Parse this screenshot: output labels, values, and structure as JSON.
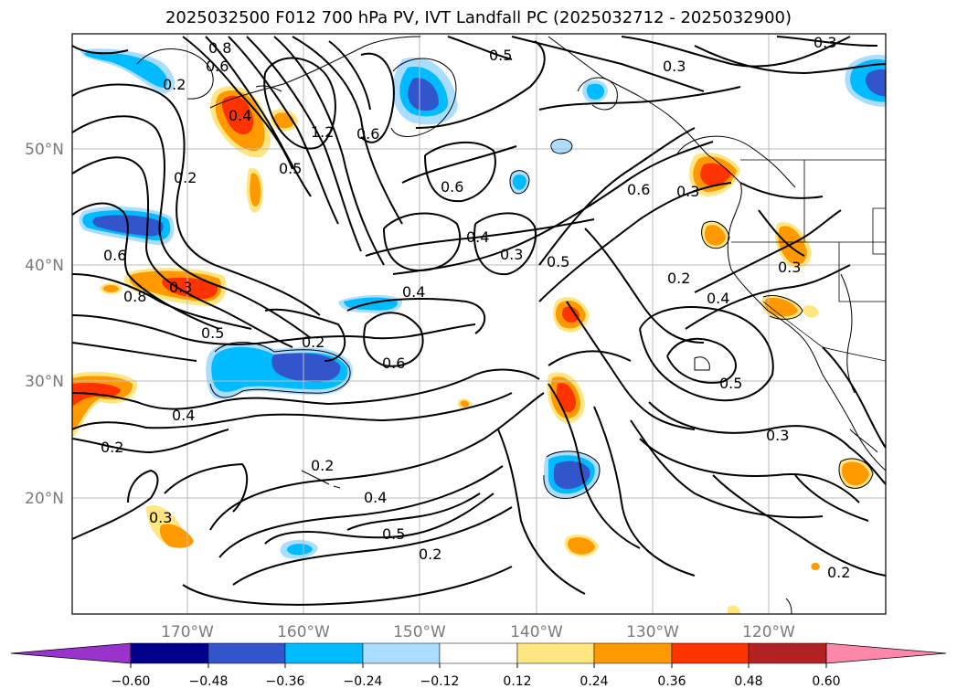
{
  "title": "2025032500 F012 700 hPa PV, IVT Landfall PC (2025032712 - 2025032900)",
  "lat_labels": [
    "50°N",
    "40°N",
    "30°N",
    "20°N"
  ],
  "lon_labels": [
    "170°W",
    "160°W",
    "150°W",
    "140°W",
    "130°W",
    "120°W"
  ],
  "contour_labels": [
    "0.5",
    "0.3",
    "0.3",
    "0.8",
    "0.6",
    "1.2",
    "0.2",
    "0.4",
    "0.5",
    "0.6",
    "0.6",
    "0.4",
    "0.3",
    "0.5",
    "0.6",
    "0.3",
    "0.6",
    "0.8",
    "0.3",
    "0.4",
    "0.2",
    "0.4",
    "0.3",
    "0.5",
    "0.2",
    "0.6",
    "0.2",
    "0.4",
    "0.2",
    "0.5",
    "0.3",
    "0.2",
    "0.4",
    "0.5",
    "0.2",
    "0.3",
    "0.2"
  ],
  "colorbar": {
    "ticks": [
      "−0.60",
      "−0.48",
      "−0.36",
      "−0.24",
      "−0.12",
      "0.12",
      "0.24",
      "0.36",
      "0.48",
      "0.60"
    ],
    "colors": [
      "#9933cc",
      "#00008b",
      "#3355cc",
      "#00bbff",
      "#aaddff",
      "#ffffff",
      "#ffe680",
      "#ff9900",
      "#ff3300",
      "#b22222",
      "#ff88aa"
    ]
  }
}
